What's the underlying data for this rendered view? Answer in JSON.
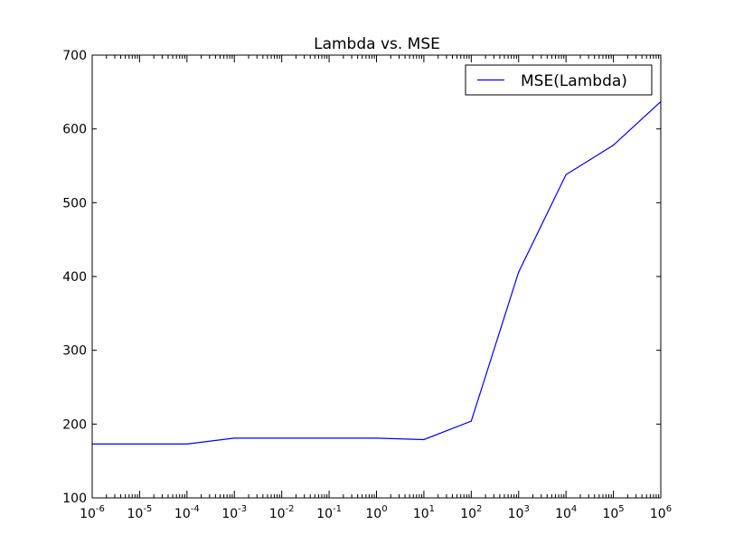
{
  "chart_data": {
    "type": "line",
    "title": "Lambda vs. MSE",
    "xlabel": "",
    "ylabel": "",
    "x_scale": "log",
    "x_tick_base": "10",
    "x_tick_exponents": [
      "-6",
      "-5",
      "-4",
      "-3",
      "-2",
      "-1",
      "0",
      "1",
      "2",
      "3",
      "4",
      "5",
      "6"
    ],
    "y_ticks": [
      "100",
      "200",
      "300",
      "400",
      "500",
      "600",
      "700"
    ],
    "xlim": [
      1e-06,
      1000000
    ],
    "ylim": [
      100,
      700
    ],
    "grid": false,
    "legend_position": "top-right",
    "series": [
      {
        "name": "MSE(Lambda)",
        "color": "#0000ff",
        "x": [
          1e-06,
          0.0001,
          0.001,
          1,
          10,
          100,
          1000,
          10000,
          100000,
          1000000
        ],
        "y": [
          173,
          173,
          181,
          181,
          179,
          204,
          406,
          538,
          578,
          637
        ]
      }
    ]
  }
}
